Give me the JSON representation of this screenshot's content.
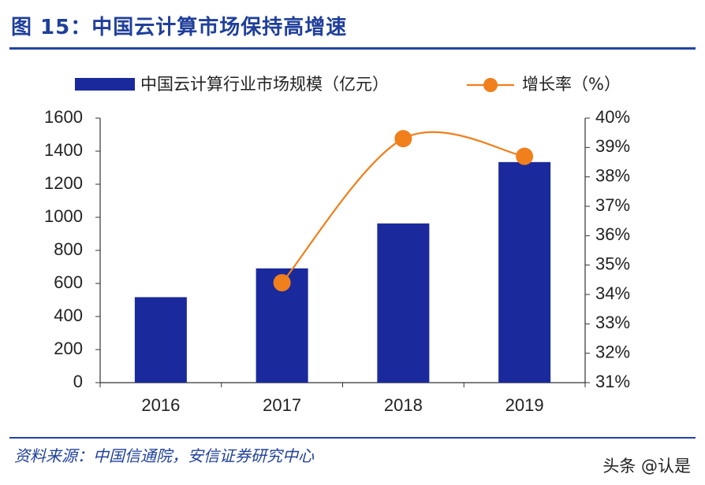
{
  "figure_title": "图 15：中国云计算市场保持高增速",
  "source_note": "资料来源：中国信通院，安信证券研究中心",
  "watermark": "头条 @认是",
  "colors": {
    "bar": "#1a2a9c",
    "line": "#f07f1c",
    "accent": "#2443a8",
    "axis": "#333333"
  },
  "chart_data": {
    "type": "bar",
    "categories": [
      "2016",
      "2017",
      "2018",
      "2019"
    ],
    "series": [
      {
        "name": "中国云计算行业市场规模（亿元）",
        "type": "bar",
        "axis": "left",
        "values": [
          517,
          691,
          963,
          1334
        ]
      },
      {
        "name": "增长率（%）",
        "type": "line",
        "axis": "right",
        "values": [
          null,
          34.4,
          39.3,
          38.7
        ]
      }
    ],
    "y_left": {
      "ylim": [
        0,
        1600
      ],
      "ticks": [
        0,
        200,
        400,
        600,
        800,
        1000,
        1200,
        1400,
        1600
      ],
      "tick_labels": [
        "0",
        "200",
        "400",
        "600",
        "800",
        "1000",
        "1200",
        "1400",
        "1600"
      ]
    },
    "y_right": {
      "ylim": [
        31,
        40
      ],
      "ticks": [
        31,
        32,
        33,
        34,
        35,
        36,
        37,
        38,
        39,
        40
      ],
      "tick_labels": [
        "31%",
        "32%",
        "33%",
        "34%",
        "35%",
        "36%",
        "37%",
        "38%",
        "39%",
        "40%"
      ]
    },
    "legend_position": "top",
    "grid": false
  }
}
